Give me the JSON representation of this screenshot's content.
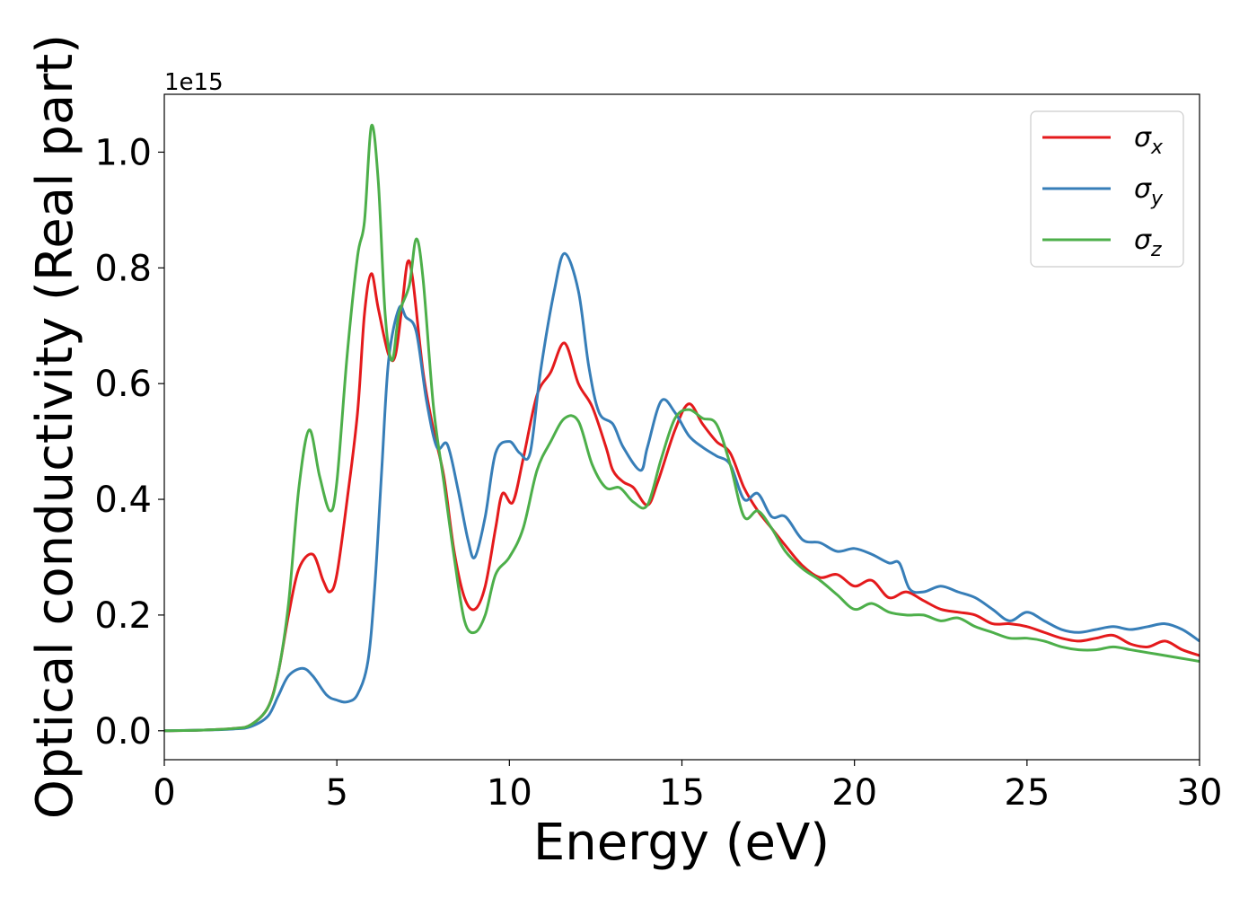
{
  "chart_data": {
    "type": "line",
    "xlabel": "Energy (eV)",
    "ylabel": "Optical conductivity (Real part)",
    "offset_text": "1e15",
    "xlim": [
      0,
      30
    ],
    "ylim": [
      -0.05,
      1.1
    ],
    "xticks": [
      0,
      5,
      10,
      15,
      20,
      25,
      30
    ],
    "xtick_labels": [
      "0",
      "5",
      "10",
      "15",
      "20",
      "25",
      "30"
    ],
    "yticks": [
      0.0,
      0.2,
      0.4,
      0.6,
      0.8,
      1.0
    ],
    "ytick_labels": [
      "0.0",
      "0.2",
      "0.4",
      "0.6",
      "0.8",
      "1.0"
    ],
    "grid": false,
    "legend_position": "top-right",
    "series": [
      {
        "name": "σx",
        "legend_base": "σ",
        "legend_sub": "x",
        "color": "#e41a1c",
        "points": [
          [
            0,
            0.0
          ],
          [
            1,
            0.001
          ],
          [
            2,
            0.004
          ],
          [
            2.5,
            0.01
          ],
          [
            3,
            0.04
          ],
          [
            3.3,
            0.1
          ],
          [
            3.6,
            0.2
          ],
          [
            3.9,
            0.28
          ],
          [
            4.3,
            0.305
          ],
          [
            4.6,
            0.26
          ],
          [
            4.8,
            0.24
          ],
          [
            5.0,
            0.27
          ],
          [
            5.3,
            0.4
          ],
          [
            5.6,
            0.55
          ],
          [
            5.8,
            0.72
          ],
          [
            6.0,
            0.79
          ],
          [
            6.2,
            0.73
          ],
          [
            6.5,
            0.65
          ],
          [
            6.7,
            0.65
          ],
          [
            6.9,
            0.74
          ],
          [
            7.05,
            0.81
          ],
          [
            7.2,
            0.78
          ],
          [
            7.5,
            0.62
          ],
          [
            7.8,
            0.52
          ],
          [
            8.1,
            0.44
          ],
          [
            8.4,
            0.31
          ],
          [
            8.7,
            0.23
          ],
          [
            9.0,
            0.21
          ],
          [
            9.3,
            0.25
          ],
          [
            9.6,
            0.35
          ],
          [
            9.8,
            0.41
          ],
          [
            10.1,
            0.395
          ],
          [
            10.4,
            0.47
          ],
          [
            10.8,
            0.58
          ],
          [
            11.2,
            0.62
          ],
          [
            11.6,
            0.67
          ],
          [
            12.0,
            0.6
          ],
          [
            12.4,
            0.56
          ],
          [
            12.8,
            0.49
          ],
          [
            13.0,
            0.45
          ],
          [
            13.3,
            0.43
          ],
          [
            13.6,
            0.42
          ],
          [
            14.0,
            0.39
          ],
          [
            14.3,
            0.43
          ],
          [
            14.8,
            0.52
          ],
          [
            15.2,
            0.565
          ],
          [
            15.6,
            0.53
          ],
          [
            16.0,
            0.5
          ],
          [
            16.4,
            0.48
          ],
          [
            16.8,
            0.42
          ],
          [
            17.2,
            0.38
          ],
          [
            17.6,
            0.35
          ],
          [
            18.0,
            0.32
          ],
          [
            18.5,
            0.285
          ],
          [
            19.0,
            0.265
          ],
          [
            19.5,
            0.27
          ],
          [
            20.0,
            0.25
          ],
          [
            20.5,
            0.26
          ],
          [
            21.0,
            0.23
          ],
          [
            21.5,
            0.24
          ],
          [
            22.0,
            0.225
          ],
          [
            22.5,
            0.21
          ],
          [
            23.0,
            0.205
          ],
          [
            23.5,
            0.2
          ],
          [
            24.0,
            0.185
          ],
          [
            24.5,
            0.185
          ],
          [
            25.0,
            0.18
          ],
          [
            25.5,
            0.17
          ],
          [
            26.0,
            0.16
          ],
          [
            26.5,
            0.155
          ],
          [
            27.0,
            0.16
          ],
          [
            27.5,
            0.165
          ],
          [
            28.0,
            0.15
          ],
          [
            28.5,
            0.145
          ],
          [
            29.0,
            0.155
          ],
          [
            29.5,
            0.14
          ],
          [
            30.0,
            0.13
          ]
        ]
      },
      {
        "name": "σy",
        "legend_base": "σ",
        "legend_sub": "y",
        "color": "#377eb8",
        "points": [
          [
            0,
            0.0
          ],
          [
            1,
            0.001
          ],
          [
            2,
            0.003
          ],
          [
            2.5,
            0.007
          ],
          [
            3,
            0.025
          ],
          [
            3.3,
            0.06
          ],
          [
            3.6,
            0.095
          ],
          [
            4.0,
            0.108
          ],
          [
            4.3,
            0.095
          ],
          [
            4.7,
            0.062
          ],
          [
            5.0,
            0.053
          ],
          [
            5.3,
            0.05
          ],
          [
            5.6,
            0.063
          ],
          [
            5.9,
            0.12
          ],
          [
            6.1,
            0.25
          ],
          [
            6.3,
            0.45
          ],
          [
            6.5,
            0.64
          ],
          [
            6.8,
            0.73
          ],
          [
            7.0,
            0.715
          ],
          [
            7.3,
            0.69
          ],
          [
            7.6,
            0.57
          ],
          [
            7.9,
            0.49
          ],
          [
            8.2,
            0.495
          ],
          [
            8.5,
            0.42
          ],
          [
            8.8,
            0.33
          ],
          [
            9.0,
            0.3
          ],
          [
            9.3,
            0.37
          ],
          [
            9.6,
            0.48
          ],
          [
            10.0,
            0.5
          ],
          [
            10.3,
            0.48
          ],
          [
            10.6,
            0.48
          ],
          [
            10.9,
            0.62
          ],
          [
            11.3,
            0.76
          ],
          [
            11.6,
            0.825
          ],
          [
            12.0,
            0.76
          ],
          [
            12.3,
            0.63
          ],
          [
            12.6,
            0.55
          ],
          [
            13.0,
            0.53
          ],
          [
            13.3,
            0.49
          ],
          [
            13.8,
            0.45
          ],
          [
            14.0,
            0.49
          ],
          [
            14.4,
            0.57
          ],
          [
            14.8,
            0.55
          ],
          [
            15.2,
            0.51
          ],
          [
            15.6,
            0.49
          ],
          [
            16.0,
            0.475
          ],
          [
            16.4,
            0.46
          ],
          [
            16.8,
            0.4
          ],
          [
            17.2,
            0.41
          ],
          [
            17.6,
            0.37
          ],
          [
            18.0,
            0.37
          ],
          [
            18.5,
            0.33
          ],
          [
            19.0,
            0.325
          ],
          [
            19.5,
            0.31
          ],
          [
            20.0,
            0.315
          ],
          [
            20.5,
            0.305
          ],
          [
            21.0,
            0.29
          ],
          [
            21.3,
            0.29
          ],
          [
            21.6,
            0.245
          ],
          [
            22.0,
            0.24
          ],
          [
            22.5,
            0.25
          ],
          [
            23.0,
            0.24
          ],
          [
            23.5,
            0.23
          ],
          [
            24.0,
            0.21
          ],
          [
            24.5,
            0.19
          ],
          [
            25.0,
            0.205
          ],
          [
            25.5,
            0.19
          ],
          [
            26.0,
            0.175
          ],
          [
            26.5,
            0.17
          ],
          [
            27.0,
            0.175
          ],
          [
            27.5,
            0.18
          ],
          [
            28.0,
            0.175
          ],
          [
            28.5,
            0.18
          ],
          [
            29.0,
            0.185
          ],
          [
            29.5,
            0.175
          ],
          [
            30.0,
            0.155
          ]
        ]
      },
      {
        "name": "σz",
        "legend_base": "σ",
        "legend_sub": "z",
        "color": "#4daf4a",
        "points": [
          [
            0,
            0.0
          ],
          [
            1,
            0.001
          ],
          [
            2,
            0.004
          ],
          [
            2.5,
            0.01
          ],
          [
            3,
            0.04
          ],
          [
            3.3,
            0.1
          ],
          [
            3.6,
            0.22
          ],
          [
            3.9,
            0.42
          ],
          [
            4.2,
            0.52
          ],
          [
            4.5,
            0.44
          ],
          [
            4.8,
            0.38
          ],
          [
            5.0,
            0.43
          ],
          [
            5.3,
            0.65
          ],
          [
            5.6,
            0.82
          ],
          [
            5.8,
            0.88
          ],
          [
            6.0,
            1.045
          ],
          [
            6.2,
            0.95
          ],
          [
            6.4,
            0.72
          ],
          [
            6.6,
            0.64
          ],
          [
            6.8,
            0.72
          ],
          [
            7.1,
            0.77
          ],
          [
            7.3,
            0.85
          ],
          [
            7.5,
            0.78
          ],
          [
            7.8,
            0.56
          ],
          [
            8.1,
            0.43
          ],
          [
            8.4,
            0.3
          ],
          [
            8.7,
            0.19
          ],
          [
            9.0,
            0.17
          ],
          [
            9.3,
            0.2
          ],
          [
            9.6,
            0.27
          ],
          [
            10.0,
            0.3
          ],
          [
            10.4,
            0.35
          ],
          [
            10.8,
            0.45
          ],
          [
            11.2,
            0.5
          ],
          [
            11.6,
            0.54
          ],
          [
            12.0,
            0.535
          ],
          [
            12.4,
            0.46
          ],
          [
            12.8,
            0.42
          ],
          [
            13.2,
            0.42
          ],
          [
            13.6,
            0.395
          ],
          [
            14.0,
            0.39
          ],
          [
            14.4,
            0.47
          ],
          [
            14.8,
            0.54
          ],
          [
            15.2,
            0.555
          ],
          [
            15.6,
            0.54
          ],
          [
            16.0,
            0.53
          ],
          [
            16.4,
            0.46
          ],
          [
            16.8,
            0.37
          ],
          [
            17.2,
            0.38
          ],
          [
            17.6,
            0.35
          ],
          [
            18.0,
            0.31
          ],
          [
            18.5,
            0.28
          ],
          [
            19.0,
            0.26
          ],
          [
            19.5,
            0.235
          ],
          [
            20.0,
            0.21
          ],
          [
            20.5,
            0.22
          ],
          [
            21.0,
            0.205
          ],
          [
            21.5,
            0.2
          ],
          [
            22.0,
            0.2
          ],
          [
            22.5,
            0.19
          ],
          [
            23.0,
            0.195
          ],
          [
            23.5,
            0.18
          ],
          [
            24.0,
            0.17
          ],
          [
            24.5,
            0.16
          ],
          [
            25.0,
            0.16
          ],
          [
            25.5,
            0.155
          ],
          [
            26.0,
            0.145
          ],
          [
            26.5,
            0.14
          ],
          [
            27.0,
            0.14
          ],
          [
            27.5,
            0.145
          ],
          [
            28.0,
            0.14
          ],
          [
            28.5,
            0.135
          ],
          [
            29.0,
            0.13
          ],
          [
            29.5,
            0.125
          ],
          [
            30.0,
            0.12
          ]
        ]
      }
    ]
  }
}
